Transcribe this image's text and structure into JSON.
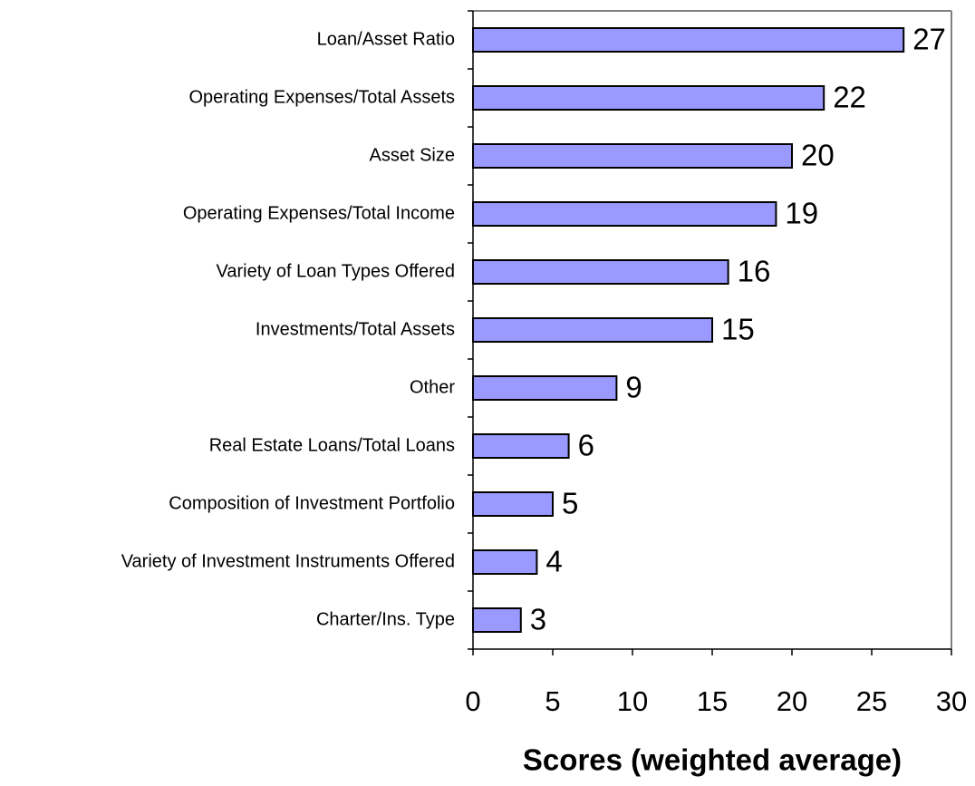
{
  "chart_data": {
    "type": "bar",
    "orientation": "horizontal",
    "categories": [
      "Loan/Asset Ratio",
      "Operating Expenses/Total Assets",
      "Asset Size",
      "Operating Expenses/Total Income",
      "Variety of Loan Types Offered",
      "Investments/Total Assets",
      "Other",
      "Real Estate Loans/Total Loans",
      "Composition of Investment Portfolio",
      "Variety of Investment Instruments Offered",
      "Charter/Ins. Type"
    ],
    "values": [
      27,
      22,
      20,
      19,
      16,
      15,
      9,
      6,
      5,
      4,
      3
    ],
    "color": "#9999ff",
    "xlim": [
      0,
      30
    ],
    "xticks": [
      0,
      5,
      10,
      15,
      20,
      25,
      30
    ],
    "xlabel": "Scores (weighted average)"
  }
}
